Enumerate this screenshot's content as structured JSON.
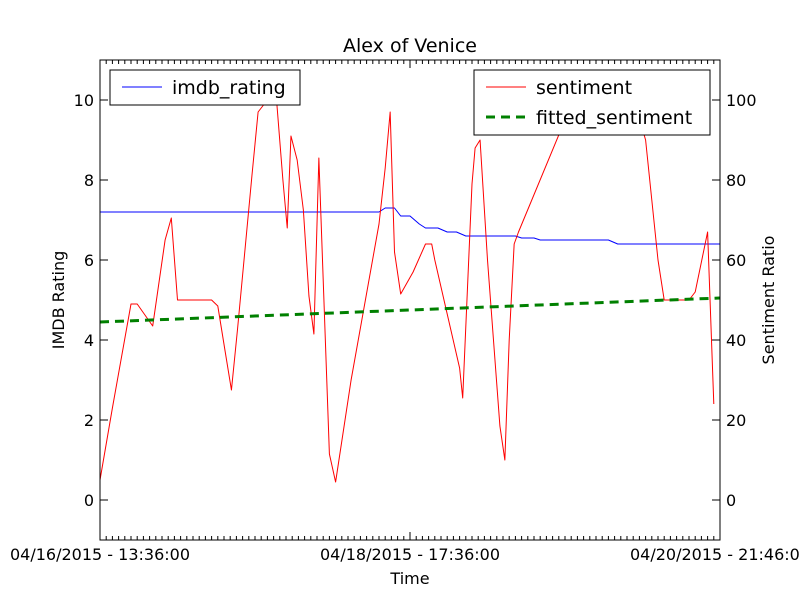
{
  "chart_data": {
    "type": "line",
    "title": "Alex of Venice",
    "xlabel": "Time",
    "ylabel_left": "IMDB Rating",
    "ylabel_right": "Sentiment Ratio",
    "xlim": [
      0,
      100
    ],
    "ylim_left": [
      -1,
      11
    ],
    "ylim_right": [
      -10,
      110
    ],
    "x_ticks": [
      {
        "x": 0,
        "label": "04/16/2015 - 13:36:00"
      },
      {
        "x": 50,
        "label": "04/18/2015 - 17:36:00"
      },
      {
        "x": 100,
        "label": "04/20/2015 - 21:46:00"
      }
    ],
    "y_ticks_left": [
      0,
      2,
      4,
      6,
      8,
      10
    ],
    "y_ticks_right": [
      0,
      20,
      40,
      60,
      80,
      100
    ],
    "legend_left": {
      "placement": "top-left",
      "entries": [
        "imdb_rating"
      ]
    },
    "legend_right": {
      "placement": "top-right",
      "entries": [
        "sentiment",
        "fitted_sentiment"
      ]
    },
    "series": [
      {
        "name": "imdb_rating",
        "axis": "left",
        "color": "#0000ff",
        "style": "solid",
        "points": [
          [
            0,
            7.2
          ],
          [
            45,
            7.2
          ],
          [
            46,
            7.3
          ],
          [
            47.5,
            7.3
          ],
          [
            48.5,
            7.1
          ],
          [
            50,
            7.1
          ],
          [
            51.5,
            6.9
          ],
          [
            52.5,
            6.8
          ],
          [
            54.5,
            6.8
          ],
          [
            56,
            6.7
          ],
          [
            57.5,
            6.7
          ],
          [
            59,
            6.6
          ],
          [
            67,
            6.6
          ],
          [
            68,
            6.55
          ],
          [
            70,
            6.55
          ],
          [
            71,
            6.5
          ],
          [
            82,
            6.5
          ],
          [
            83.5,
            6.4
          ],
          [
            100,
            6.4
          ]
        ]
      },
      {
        "name": "sentiment",
        "axis": "right",
        "color": "#ff0000",
        "style": "solid",
        "points": [
          [
            0,
            5
          ],
          [
            2,
            23
          ],
          [
            5,
            49
          ],
          [
            6,
            49
          ],
          [
            8.5,
            43.5
          ],
          [
            9.2,
            51
          ],
          [
            10.5,
            65
          ],
          [
            11.5,
            70.5
          ],
          [
            12.5,
            50
          ],
          [
            18,
            50
          ],
          [
            19,
            48.5
          ],
          [
            20.2,
            37
          ],
          [
            21.2,
            27.5
          ],
          [
            22.2,
            43
          ],
          [
            24.5,
            81
          ],
          [
            25.5,
            97
          ],
          [
            26.5,
            99
          ],
          [
            27.5,
            99.5
          ],
          [
            28.5,
            99.5
          ],
          [
            29.5,
            80
          ],
          [
            30.2,
            68
          ],
          [
            30.8,
            91
          ],
          [
            31.8,
            85
          ],
          [
            32.8,
            72.5
          ],
          [
            33.7,
            51
          ],
          [
            34.5,
            41.5
          ],
          [
            35.3,
            85.5
          ],
          [
            37,
            11.5
          ],
          [
            38,
            4.5
          ],
          [
            40.5,
            30
          ],
          [
            45,
            69
          ],
          [
            46,
            83
          ],
          [
            46.8,
            97
          ],
          [
            47.5,
            62
          ],
          [
            48.5,
            51.5
          ],
          [
            50.5,
            57
          ],
          [
            52.5,
            64
          ],
          [
            53.5,
            64
          ],
          [
            54,
            60
          ],
          [
            58,
            33
          ],
          [
            58.5,
            25.5
          ],
          [
            60,
            79
          ],
          [
            60.5,
            88
          ],
          [
            61.3,
            90
          ],
          [
            62.5,
            60
          ],
          [
            64.5,
            18.5
          ],
          [
            65.3,
            10
          ],
          [
            66,
            40
          ],
          [
            66.8,
            64
          ],
          [
            67.5,
            67
          ],
          [
            75,
            95
          ],
          [
            76.5,
            98
          ],
          [
            86.5,
            98
          ],
          [
            88,
            90
          ],
          [
            90,
            60
          ],
          [
            91,
            50
          ],
          [
            95,
            50
          ],
          [
            96,
            52
          ],
          [
            98,
            67
          ],
          [
            99,
            24
          ]
        ]
      },
      {
        "name": "fitted_sentiment",
        "axis": "right",
        "color": "#008000",
        "style": "dashed",
        "points": [
          [
            0,
            44.5
          ],
          [
            100,
            50.5
          ]
        ]
      }
    ]
  }
}
